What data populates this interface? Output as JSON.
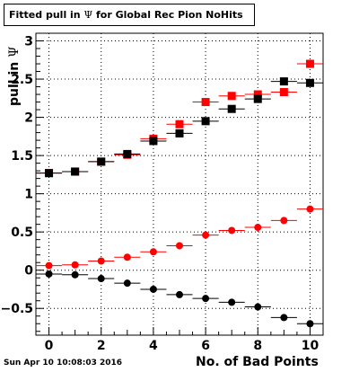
{
  "title": {
    "prefix": "Fitted pull in ",
    "symbol": "Ψ",
    "suffix": " for Global Rec Pion NoHits"
  },
  "footer": {
    "date": "Sun Apr 10 10:08:03 2016"
  },
  "colors": {
    "red": "#ff0000",
    "black": "#000000",
    "axis": "#000000",
    "grid": "#000000"
  },
  "chart_data": {
    "type": "scatter",
    "xlabel": "No. of Bad Points",
    "ylabel_prefix": "pull in ",
    "ylabel_symbol": "Ψ",
    "xlim": [
      -0.5,
      10.5
    ],
    "ylim": [
      -0.85,
      3.1
    ],
    "grid": true,
    "x_ticks": [
      0,
      2,
      4,
      6,
      8,
      10
    ],
    "y_ticks": [
      -0.5,
      0,
      0.5,
      1,
      1.5,
      2,
      2.5,
      3
    ],
    "y_tick_labels": [
      "−0.5",
      "0",
      "0.5",
      "1",
      "1.5",
      "2",
      "2.5",
      "3"
    ],
    "x_tick_labels": [
      "0",
      "2",
      "4",
      "6",
      "8",
      "10"
    ],
    "x": [
      0,
      1,
      2,
      3,
      4,
      5,
      6,
      7,
      8,
      9,
      10
    ],
    "series": [
      {
        "marker": "square",
        "color": "#ff0000",
        "values": [
          1.27,
          1.29,
          1.42,
          1.51,
          1.72,
          1.91,
          2.2,
          2.28,
          2.3,
          2.33,
          2.7
        ]
      },
      {
        "marker": "square",
        "color": "#000000",
        "values": [
          1.27,
          1.29,
          1.42,
          1.52,
          1.69,
          1.79,
          1.95,
          2.11,
          2.24,
          2.47,
          2.45
        ]
      },
      {
        "marker": "circle",
        "color": "#ff0000",
        "values": [
          0.06,
          0.07,
          0.12,
          0.17,
          0.24,
          0.32,
          0.46,
          0.52,
          0.56,
          0.65,
          0.8
        ]
      },
      {
        "marker": "circle",
        "color": "#000000",
        "values": [
          -0.05,
          -0.06,
          -0.11,
          -0.17,
          -0.25,
          -0.32,
          -0.37,
          -0.42,
          -0.48,
          -0.62,
          -0.7
        ]
      }
    ]
  }
}
